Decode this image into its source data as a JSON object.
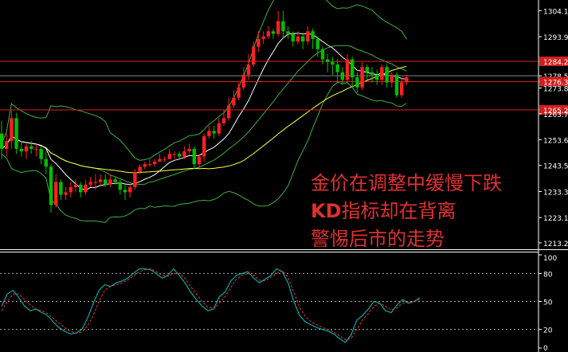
{
  "chart_data": [
    {
      "type": "candlestick",
      "panel": "price",
      "ylim": [
        1211,
        1307
      ],
      "y_ticks": [
        "1304.10",
        "1293.90",
        "1284.25",
        "1278.58",
        "1276.3",
        "1273.80",
        "1265.25",
        "1263.70",
        "1253.60",
        "1243.50",
        "1233.30",
        "1223.10",
        "1213.20"
      ],
      "y_tick_values": [
        1304.1,
        1293.9,
        1284.25,
        1278.58,
        1276.3,
        1273.8,
        1265.25,
        1263.7,
        1253.6,
        1243.5,
        1233.3,
        1223.1,
        1213.2
      ],
      "highlight_ticks": [
        "1284.25",
        "1276.3",
        "1265.25"
      ],
      "hlines": [
        1284.25,
        1276.3,
        1265.25
      ],
      "current_price_line": 1278.58,
      "candles": [
        [
          1256,
          1250,
          1261,
          1246
        ],
        [
          1250,
          1253,
          1256,
          1247
        ],
        [
          1253,
          1262,
          1265,
          1250
        ],
        [
          1262,
          1250,
          1264,
          1248
        ],
        [
          1250,
          1249,
          1253,
          1247
        ],
        [
          1249,
          1251,
          1252,
          1246
        ],
        [
          1251,
          1250,
          1253,
          1248
        ],
        [
          1250,
          1250,
          1252,
          1247
        ],
        [
          1250,
          1246,
          1251,
          1244
        ],
        [
          1246,
          1243,
          1249,
          1240
        ],
        [
          1243,
          1228,
          1244,
          1225
        ],
        [
          1228,
          1237,
          1240,
          1227
        ],
        [
          1237,
          1232,
          1238,
          1230
        ],
        [
          1232,
          1233,
          1235,
          1230
        ],
        [
          1233,
          1235,
          1237,
          1231
        ],
        [
          1235,
          1236,
          1238,
          1233
        ],
        [
          1236,
          1233,
          1237,
          1231
        ],
        [
          1233,
          1236,
          1238,
          1232
        ],
        [
          1236,
          1237,
          1239,
          1235
        ],
        [
          1237,
          1237,
          1240,
          1234
        ],
        [
          1237,
          1238,
          1240,
          1236
        ],
        [
          1238,
          1236,
          1240,
          1235
        ],
        [
          1236,
          1238,
          1240,
          1235
        ],
        [
          1238,
          1237,
          1239,
          1236
        ],
        [
          1237,
          1234,
          1238,
          1232
        ],
        [
          1234,
          1233,
          1236,
          1230
        ],
        [
          1233,
          1235,
          1236,
          1231
        ],
        [
          1235,
          1241,
          1242,
          1234
        ],
        [
          1241,
          1243,
          1244,
          1240
        ],
        [
          1243,
          1244,
          1245,
          1242
        ],
        [
          1244,
          1244,
          1246,
          1243
        ],
        [
          1244,
          1245,
          1246,
          1243
        ],
        [
          1245,
          1246,
          1248,
          1245
        ],
        [
          1246,
          1246,
          1247,
          1245
        ],
        [
          1246,
          1248,
          1250,
          1246
        ],
        [
          1248,
          1248,
          1249,
          1246
        ],
        [
          1248,
          1247,
          1249,
          1246
        ],
        [
          1247,
          1249,
          1251,
          1246
        ],
        [
          1249,
          1250,
          1252,
          1248
        ],
        [
          1250,
          1244,
          1251,
          1242
        ],
        [
          1244,
          1247,
          1248,
          1243
        ],
        [
          1247,
          1255,
          1256,
          1245
        ],
        [
          1255,
          1257,
          1259,
          1254
        ],
        [
          1257,
          1256,
          1259,
          1254
        ],
        [
          1256,
          1260,
          1262,
          1255
        ],
        [
          1260,
          1262,
          1265,
          1259
        ],
        [
          1262,
          1267,
          1270,
          1261
        ],
        [
          1267,
          1270,
          1273,
          1266
        ],
        [
          1270,
          1274,
          1276,
          1269
        ],
        [
          1274,
          1279,
          1282,
          1273
        ],
        [
          1279,
          1283,
          1287,
          1277
        ],
        [
          1283,
          1290,
          1292,
          1282
        ],
        [
          1290,
          1293,
          1296,
          1288
        ],
        [
          1293,
          1294,
          1296,
          1291
        ],
        [
          1294,
          1296,
          1298,
          1293
        ],
        [
          1296,
          1295,
          1297,
          1293
        ],
        [
          1295,
          1300,
          1304,
          1294
        ],
        [
          1300,
          1296,
          1304,
          1293
        ],
        [
          1296,
          1295,
          1298,
          1293
        ],
        [
          1295,
          1292,
          1296,
          1290
        ],
        [
          1292,
          1294,
          1296,
          1291
        ],
        [
          1294,
          1292,
          1295,
          1289
        ],
        [
          1292,
          1296,
          1298,
          1291
        ],
        [
          1296,
          1293,
          1297,
          1289
        ],
        [
          1293,
          1289,
          1294,
          1286
        ],
        [
          1289,
          1285,
          1290,
          1283
        ],
        [
          1285,
          1284,
          1287,
          1280
        ],
        [
          1284,
          1283,
          1286,
          1279
        ],
        [
          1283,
          1280,
          1285,
          1276
        ],
        [
          1280,
          1277,
          1282,
          1275
        ],
        [
          1277,
          1285,
          1287,
          1276
        ],
        [
          1285,
          1278,
          1286,
          1274
        ],
        [
          1278,
          1274,
          1280,
          1272
        ],
        [
          1274,
          1282,
          1284,
          1273
        ],
        [
          1282,
          1280,
          1283,
          1277
        ],
        [
          1280,
          1279,
          1282,
          1276
        ],
        [
          1279,
          1277,
          1281,
          1275
        ],
        [
          1277,
          1282,
          1283,
          1275
        ],
        [
          1282,
          1276,
          1283,
          1274
        ],
        [
          1276,
          1279,
          1280,
          1274
        ],
        [
          1279,
          1271,
          1280,
          1270
        ],
        [
          1271,
          1276,
          1278,
          1270
        ],
        [
          1276,
          1278,
          1279,
          1275
        ]
      ]
    },
    {
      "type": "line",
      "panel": "oscillator",
      "ylim": [
        0,
        100
      ],
      "y_ticks": [
        "100",
        "80",
        "50",
        "20",
        "0"
      ],
      "y_tick_values": [
        100,
        80,
        50,
        20,
        0
      ],
      "dashed_levels": [
        80,
        50,
        20
      ],
      "series": [
        {
          "color": "#00c8c8",
          "values": [
            45,
            58,
            62,
            54,
            45,
            40,
            42,
            38,
            35,
            28,
            22,
            18,
            15,
            16,
            20,
            32,
            48,
            62,
            68,
            66,
            70,
            72,
            75,
            80,
            85,
            85,
            84,
            80,
            75,
            78,
            85,
            78,
            70,
            60,
            52,
            45,
            40,
            42,
            55,
            60,
            72,
            78,
            80,
            82,
            75,
            70,
            74,
            78,
            85,
            82,
            70,
            50,
            35,
            28,
            25,
            22,
            20,
            18,
            15,
            10,
            6,
            14,
            30,
            35,
            42,
            50,
            48,
            40,
            38,
            46,
            52,
            48,
            50,
            54
          ]
        },
        {
          "color": "#e04030",
          "values": [
            40,
            50,
            58,
            58,
            52,
            46,
            42,
            40,
            37,
            32,
            27,
            22,
            18,
            16,
            17,
            24,
            35,
            50,
            62,
            66,
            68,
            70,
            73,
            77,
            82,
            84,
            85,
            82,
            78,
            77,
            80,
            80,
            75,
            66,
            58,
            50,
            44,
            42,
            48,
            55,
            65,
            74,
            78,
            80,
            78,
            73,
            72,
            76,
            80,
            83,
            76,
            60,
            44,
            34,
            28,
            25,
            22,
            20,
            17,
            13,
            9,
            10,
            20,
            30,
            37,
            45,
            48,
            45,
            41,
            43,
            48,
            49,
            50,
            52
          ]
        }
      ]
    }
  ],
  "annotation": {
    "line1": "金价在调整中缓慢下跌",
    "line2_kd": "KD",
    "line2_rest": "指标却在背离",
    "line3": "警惕后市的走势"
  },
  "colors": {
    "background": "#000000",
    "bull_candle": "#ff2020",
    "bear_candle": "#00c000",
    "ma_white": "#ffffff",
    "ma_yellow": "#ffff40",
    "bollinger": "#40b040",
    "resistance_lines": "#e02020",
    "annotation_text": "#e03030"
  }
}
